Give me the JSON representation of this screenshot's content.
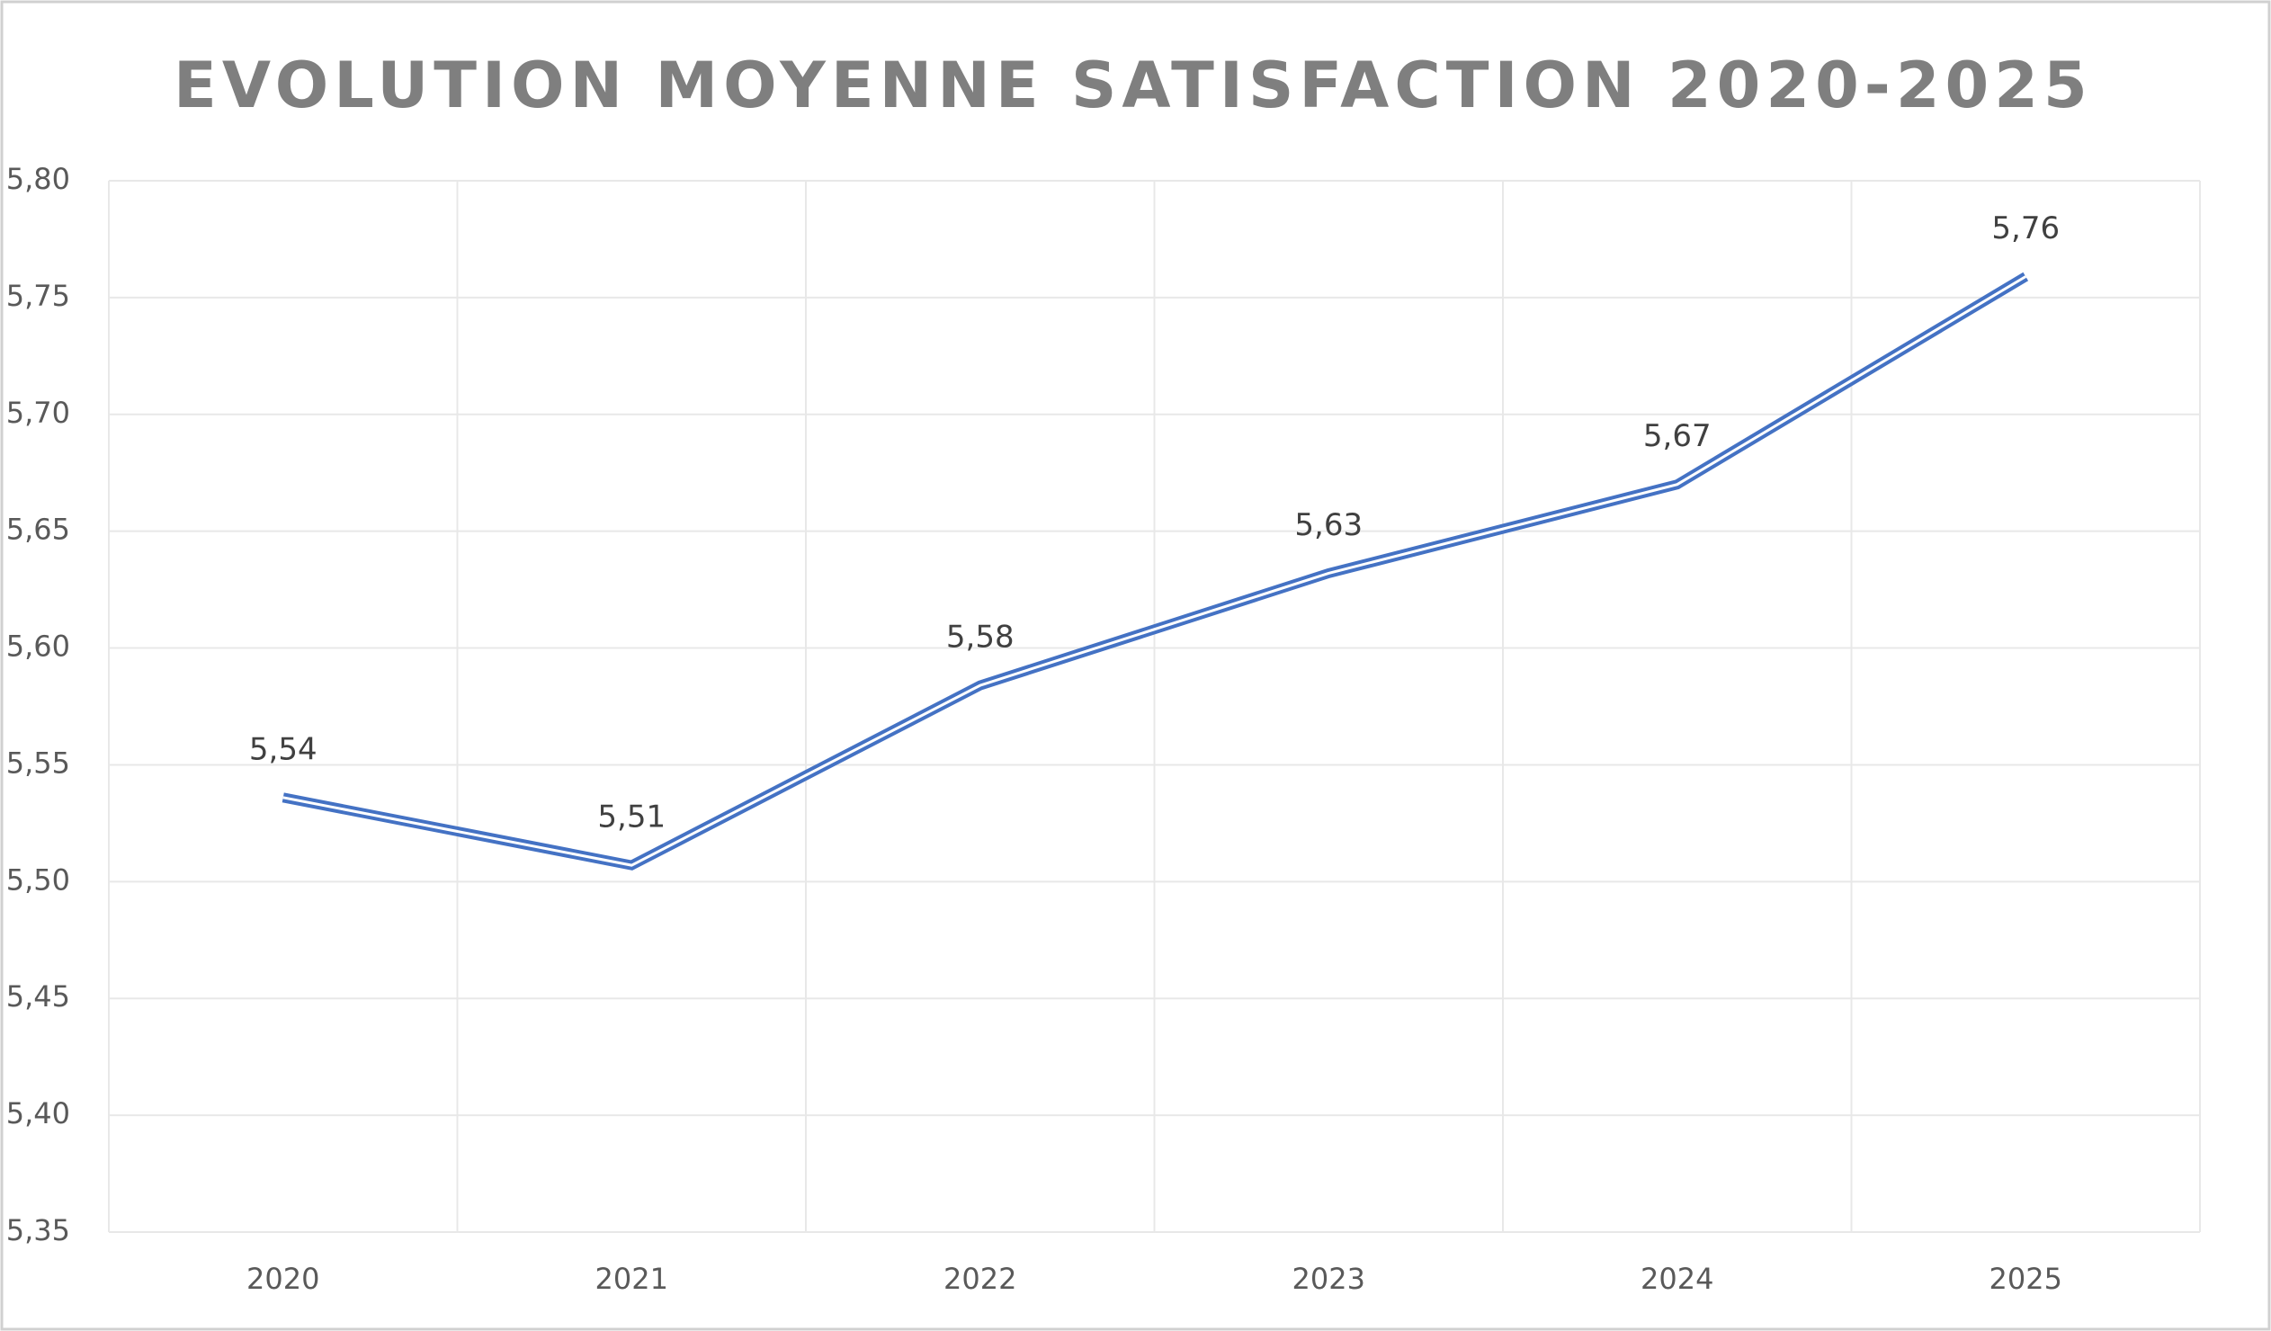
{
  "chart_data": {
    "type": "line",
    "title": "EVOLUTION MOYENNE SATISFACTION 2020-2025",
    "categories": [
      "2020",
      "2021",
      "2022",
      "2023",
      "2024",
      "2025"
    ],
    "series": [
      {
        "color": "#4472c4",
        "values": [
          5.536,
          5.507,
          5.584,
          5.632,
          5.67,
          5.759
        ],
        "value_labels": [
          "5,54",
          "5,51",
          "5,58",
          "5,63",
          "5,67",
          "5,76"
        ]
      }
    ],
    "ylim": [
      5.35,
      5.8
    ],
    "yticks": [
      {
        "value": 5.35,
        "label": "5,35"
      },
      {
        "value": 5.4,
        "label": "5,40"
      },
      {
        "value": 5.45,
        "label": "5,45"
      },
      {
        "value": 5.5,
        "label": "5,50"
      },
      {
        "value": 5.55,
        "label": "5,55"
      },
      {
        "value": 5.6,
        "label": "5,60"
      },
      {
        "value": 5.65,
        "label": "5,65"
      },
      {
        "value": 5.7,
        "label": "5,70"
      },
      {
        "value": 5.75,
        "label": "5,75"
      },
      {
        "value": 5.8,
        "label": "5,80"
      }
    ],
    "grid": true
  }
}
